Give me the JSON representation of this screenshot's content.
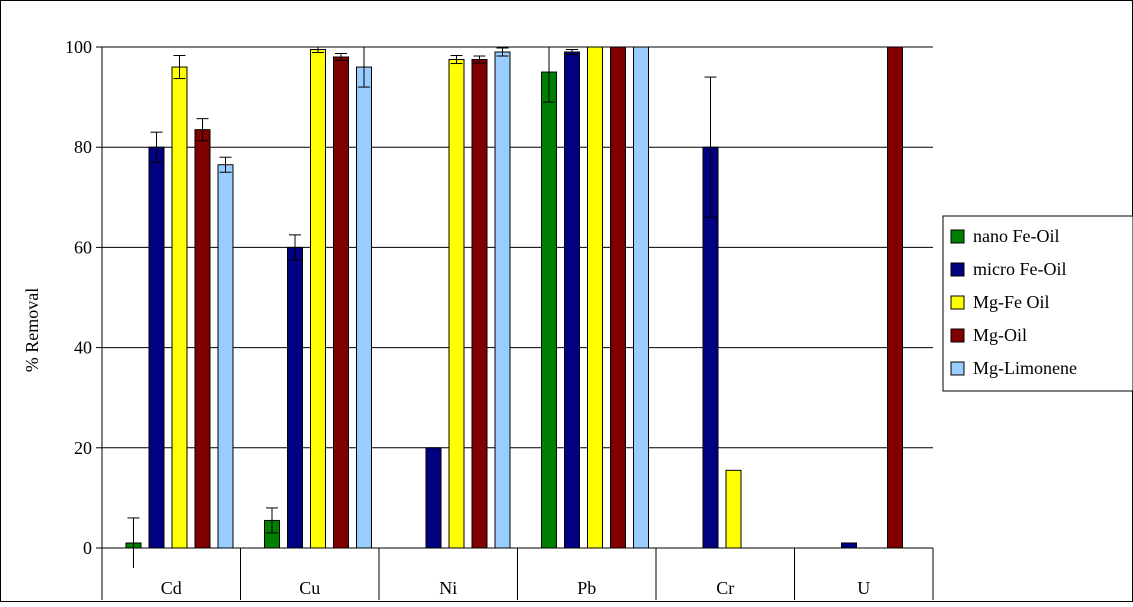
{
  "chart_data": {
    "type": "bar",
    "title": "",
    "xlabel": "",
    "ylabel": "% Removal",
    "ylim": [
      0,
      100
    ],
    "yticks": [
      0,
      20,
      40,
      60,
      80,
      100
    ],
    "grid": true,
    "legend_position": "right",
    "categories": [
      "Cd",
      "Cu",
      "Ni",
      "Pb",
      "Cr",
      "U"
    ],
    "series": [
      {
        "name": "nano Fe-Oil",
        "color": "#008000",
        "values": [
          1,
          5.5,
          0,
          95,
          0,
          0
        ],
        "errors": [
          5,
          2.5,
          null,
          6,
          null,
          null
        ]
      },
      {
        "name": "micro Fe-Oil",
        "color": "#000080",
        "values": [
          80,
          60,
          20,
          99,
          80,
          1
        ],
        "errors": [
          3,
          2.5,
          null,
          0.5,
          14,
          null
        ]
      },
      {
        "name": "Mg-Fe Oil",
        "color": "#ffff00",
        "values": [
          96,
          99.5,
          97.5,
          100,
          15.5,
          0
        ],
        "errors": [
          2.3,
          0.6,
          0.8,
          null,
          null,
          null
        ]
      },
      {
        "name": "Mg-Oil",
        "color": "#800000",
        "values": [
          83.5,
          98,
          97.5,
          100,
          0,
          100
        ],
        "errors": [
          2.2,
          0.7,
          0.7,
          null,
          null,
          null
        ]
      },
      {
        "name": "Mg-Limonene",
        "color": "#99ccff",
        "values": [
          76.5,
          96,
          99,
          100,
          0,
          0
        ],
        "errors": [
          1.5,
          4,
          0.8,
          null,
          null,
          null
        ]
      }
    ]
  }
}
